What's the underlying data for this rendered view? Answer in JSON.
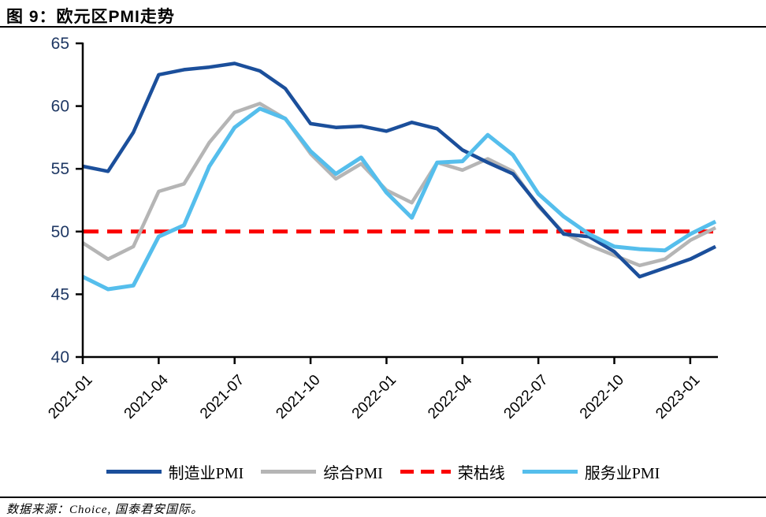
{
  "source_note": "数据来源：Choice, 国泰君安国际。",
  "colors": {
    "manufacturing": "#1B4F9B",
    "composite": "#B5B5B5",
    "services": "#55BEEC",
    "threshold": "#FB0000",
    "axis": "#000000",
    "y_tick_label": "#1F3864",
    "x_tick_label": "#000000"
  },
  "chart_data": {
    "type": "line",
    "title": "图 9：欧元区PMI走势",
    "xlabel": "",
    "ylabel": "",
    "ylim": [
      40,
      65
    ],
    "y_ticks": [
      40,
      45,
      50,
      55,
      60,
      65
    ],
    "grid": false,
    "legend_position": "bottom",
    "x_tick_labels": [
      "2021-01",
      "2021-04",
      "2021-07",
      "2021-10",
      "2022-01",
      "2022-04",
      "2022-07",
      "2022-10",
      "2023-01"
    ],
    "months": [
      "2021-01",
      "2021-02",
      "2021-03",
      "2021-04",
      "2021-05",
      "2021-06",
      "2021-07",
      "2021-08",
      "2021-09",
      "2021-10",
      "2021-11",
      "2021-12",
      "2022-01",
      "2022-02",
      "2022-03",
      "2022-04",
      "2022-05",
      "2022-06",
      "2022-07",
      "2022-08",
      "2022-09",
      "2022-10",
      "2022-11",
      "2022-12",
      "2023-01",
      "2023-02"
    ],
    "series": [
      {
        "name": "制造业PMI",
        "color": "#1B4F9B",
        "stroke_width": 4.5,
        "values": [
          55.2,
          54.8,
          57.9,
          62.5,
          62.9,
          63.1,
          63.4,
          62.8,
          61.4,
          58.6,
          58.3,
          58.4,
          58.0,
          58.7,
          58.2,
          56.5,
          55.5,
          54.6,
          52.1,
          49.8,
          49.6,
          48.4,
          46.4,
          47.1,
          47.8,
          48.8
        ]
      },
      {
        "name": "综合PMI",
        "color": "#B5B5B5",
        "stroke_width": 4.5,
        "values": [
          49.1,
          47.8,
          48.8,
          53.2,
          53.8,
          57.1,
          59.5,
          60.2,
          59.0,
          56.2,
          54.2,
          55.4,
          53.3,
          52.3,
          55.5,
          54.9,
          55.8,
          54.8,
          52.0,
          49.9,
          48.9,
          48.1,
          47.3,
          47.8,
          49.3,
          50.3
        ]
      },
      {
        "name": "服务业PMI",
        "color": "#55BEEC",
        "stroke_width": 5,
        "values": [
          46.4,
          45.4,
          45.7,
          49.6,
          50.5,
          55.2,
          58.3,
          59.8,
          59.0,
          56.4,
          54.6,
          55.9,
          53.1,
          51.1,
          55.5,
          55.6,
          57.7,
          56.1,
          53.0,
          51.2,
          49.8,
          48.8,
          48.6,
          48.5,
          49.8,
          50.8
        ]
      }
    ],
    "threshold_line": {
      "name": "荣枯线",
      "value": 50,
      "color": "#FB0000",
      "style": "dashed"
    },
    "legend": [
      {
        "label": "制造业PMI",
        "color": "#1B4F9B",
        "dashed": false
      },
      {
        "label": "综合PMI",
        "color": "#B5B5B5",
        "dashed": false
      },
      {
        "label": "荣枯线",
        "color": "#FB0000",
        "dashed": true
      },
      {
        "label": "服务业PMI",
        "color": "#55BEEC",
        "dashed": false
      }
    ]
  }
}
